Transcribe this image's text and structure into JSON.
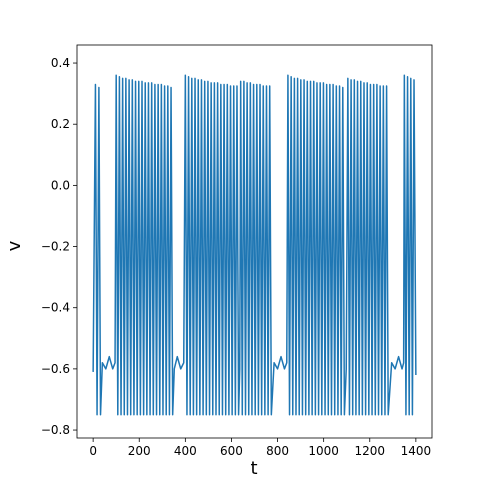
{
  "chart_data": {
    "type": "line",
    "x_label": "t",
    "y_label": "v",
    "color": "#1f77b4",
    "x": [
      0,
      10,
      17,
      25,
      32,
      40,
      55,
      70,
      85,
      95,
      100,
      107,
      114,
      121,
      128,
      135,
      142,
      149,
      156,
      163,
      170,
      177,
      184,
      191,
      198,
      205,
      212,
      219,
      226,
      233,
      240,
      247,
      254,
      261,
      268,
      275,
      282,
      289,
      296,
      303,
      310,
      317,
      324,
      331,
      338,
      345,
      352,
      365,
      380,
      393,
      400,
      407,
      414,
      421,
      428,
      435,
      442,
      449,
      456,
      463,
      470,
      477,
      484,
      491,
      498,
      505,
      512,
      519,
      526,
      533,
      540,
      547,
      554,
      561,
      568,
      575,
      582,
      589,
      596,
      603,
      610,
      617,
      624,
      631,
      636,
      640,
      647,
      654,
      661,
      668,
      675,
      682,
      689,
      696,
      703,
      710,
      717,
      724,
      731,
      738,
      745,
      752,
      759,
      766,
      773,
      785,
      800,
      815,
      830,
      840,
      845,
      852,
      859,
      866,
      873,
      880,
      887,
      894,
      901,
      908,
      915,
      922,
      929,
      936,
      943,
      950,
      957,
      964,
      971,
      978,
      985,
      992,
      999,
      1006,
      1013,
      1020,
      1027,
      1034,
      1041,
      1048,
      1055,
      1062,
      1069,
      1076,
      1083,
      1090,
      1098,
      1105,
      1112,
      1119,
      1126,
      1133,
      1140,
      1147,
      1154,
      1161,
      1168,
      1175,
      1182,
      1189,
      1196,
      1203,
      1210,
      1217,
      1224,
      1231,
      1238,
      1245,
      1252,
      1259,
      1266,
      1273,
      1280,
      1295,
      1310,
      1325,
      1340,
      1347,
      1350,
      1357,
      1364,
      1371,
      1378,
      1385,
      1392,
      1400
    ],
    "values": [
      -0.61,
      0.33,
      -0.75,
      0.32,
      -0.75,
      -0.58,
      -0.6,
      -0.56,
      -0.6,
      -0.58,
      0.36,
      -0.75,
      0.355,
      -0.75,
      0.35,
      -0.75,
      0.35,
      -0.75,
      0.345,
      -0.75,
      0.345,
      -0.75,
      0.34,
      -0.75,
      0.34,
      -0.75,
      0.34,
      -0.75,
      0.335,
      -0.75,
      0.335,
      -0.75,
      0.335,
      -0.75,
      0.33,
      -0.75,
      0.33,
      -0.75,
      0.33,
      -0.75,
      0.325,
      -0.75,
      0.325,
      -0.75,
      0.32,
      -0.75,
      -0.6,
      -0.56,
      -0.6,
      -0.58,
      0.36,
      -0.75,
      0.355,
      -0.75,
      0.35,
      -0.75,
      0.35,
      -0.75,
      0.345,
      -0.75,
      0.345,
      -0.75,
      0.34,
      -0.75,
      0.34,
      -0.75,
      0.335,
      -0.75,
      0.335,
      -0.75,
      0.335,
      -0.75,
      0.33,
      -0.75,
      0.33,
      -0.75,
      0.33,
      -0.75,
      0.325,
      -0.75,
      0.325,
      -0.75,
      0.325,
      -0.75,
      -0.6,
      0.34,
      -0.75,
      0.34,
      -0.75,
      0.335,
      -0.75,
      0.335,
      -0.75,
      0.33,
      -0.75,
      0.33,
      -0.75,
      0.33,
      -0.75,
      0.325,
      -0.75,
      0.325,
      -0.75,
      0.325,
      -0.75,
      -0.58,
      -0.6,
      -0.56,
      -0.6,
      -0.58,
      0.36,
      -0.75,
      0.355,
      -0.75,
      0.35,
      -0.75,
      0.35,
      -0.75,
      0.345,
      -0.75,
      0.345,
      -0.75,
      0.34,
      -0.75,
      0.34,
      -0.75,
      0.34,
      -0.75,
      0.335,
      -0.75,
      0.335,
      -0.75,
      0.335,
      -0.75,
      0.33,
      -0.75,
      0.33,
      -0.75,
      0.33,
      -0.75,
      0.325,
      -0.75,
      0.325,
      -0.75,
      0.32,
      -0.75,
      -0.6,
      0.35,
      -0.75,
      0.345,
      -0.75,
      0.345,
      -0.75,
      0.34,
      -0.75,
      0.34,
      -0.75,
      0.335,
      -0.75,
      0.335,
      -0.75,
      0.33,
      -0.75,
      0.33,
      -0.75,
      0.33,
      -0.75,
      0.325,
      -0.75,
      0.325,
      -0.75,
      0.325,
      -0.75,
      -0.58,
      -0.6,
      -0.56,
      -0.6,
      -0.58,
      0.36,
      -0.75,
      0.355,
      -0.75,
      0.35,
      -0.75,
      0.345,
      -0.62
    ],
    "xlim": [
      -70,
      1470
    ],
    "ylim": [
      -0.826,
      0.459
    ],
    "xticks": [
      0,
      200,
      400,
      600,
      800,
      1000,
      1200,
      1400
    ],
    "yticks": [
      {
        "value": -0.8,
        "label": "−0.8"
      },
      {
        "value": -0.6,
        "label": "−0.6"
      },
      {
        "value": -0.4,
        "label": "−0.4"
      },
      {
        "value": -0.2,
        "label": "−0.2"
      },
      {
        "value": 0,
        "label": "0.0"
      },
      0.2,
      0.4
    ]
  }
}
